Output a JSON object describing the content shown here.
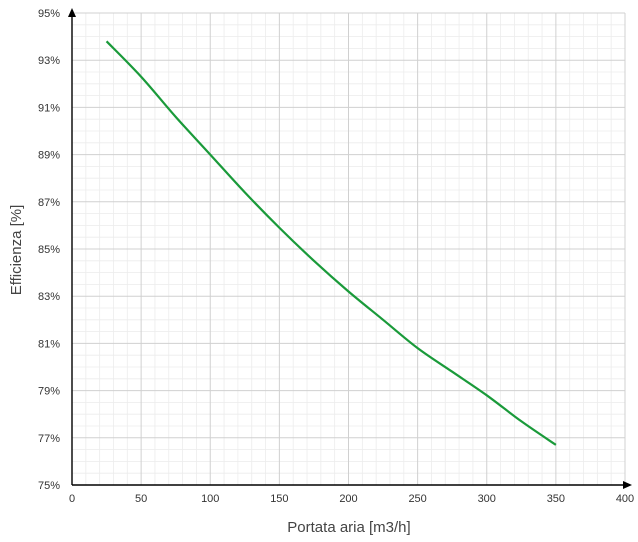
{
  "chart_data": {
    "type": "line",
    "title": "",
    "xlabel": "Portata aria [m3/h]",
    "ylabel": "Efficienza [%]",
    "xlim": [
      0,
      400
    ],
    "ylim": [
      75,
      95
    ],
    "x_ticks": [
      0,
      50,
      100,
      150,
      200,
      250,
      300,
      350,
      400
    ],
    "y_ticks": [
      75,
      77,
      79,
      81,
      83,
      85,
      87,
      89,
      91,
      93,
      95
    ],
    "y_tick_labels": [
      "75%",
      "77%",
      "79%",
      "81%",
      "83%",
      "85%",
      "87%",
      "89%",
      "91%",
      "93%",
      "95%"
    ],
    "grid": true,
    "legend": "none",
    "series": [
      {
        "color": "#1a9a3a",
        "x": [
          25,
          50,
          75,
          100,
          125,
          150,
          175,
          200,
          225,
          250,
          275,
          300,
          325,
          350
        ],
        "y": [
          93.8,
          92.3,
          90.6,
          89.0,
          87.4,
          85.9,
          84.5,
          83.2,
          82.0,
          80.8,
          79.8,
          78.8,
          77.7,
          76.7
        ]
      }
    ]
  }
}
